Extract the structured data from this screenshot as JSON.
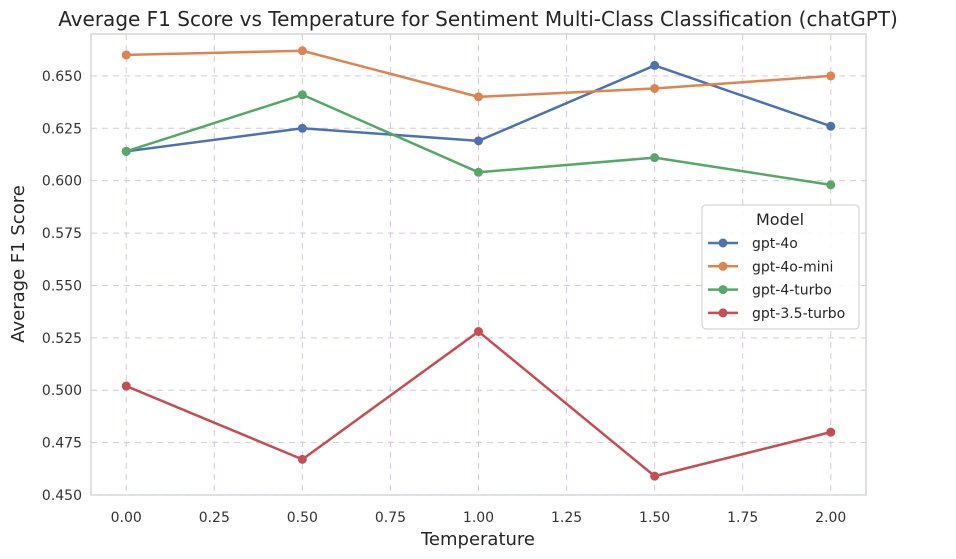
{
  "chart_data": {
    "type": "line",
    "title": "Average F1 Score vs Temperature for Sentiment Multi-Class Classification (chatGPT)",
    "xlabel": "Temperature",
    "ylabel": "Average F1 Score",
    "x": [
      0.0,
      0.5,
      1.0,
      1.5,
      2.0
    ],
    "xlim": [
      -0.1,
      2.1
    ],
    "ylim": [
      0.45,
      0.67
    ],
    "x_ticks": [
      "0.00",
      "0.25",
      "0.50",
      "0.75",
      "1.00",
      "1.25",
      "1.50",
      "1.75",
      "2.00"
    ],
    "y_ticks": [
      "0.450",
      "0.475",
      "0.500",
      "0.525",
      "0.550",
      "0.575",
      "0.600",
      "0.625",
      "0.650"
    ],
    "grid": true,
    "legend": {
      "title": "Model",
      "placement": "center-right"
    },
    "series": [
      {
        "name": "gpt-4o",
        "color": "#4c72b0",
        "values": [
          0.614,
          0.625,
          0.619,
          0.655,
          0.626
        ]
      },
      {
        "name": "gpt-4o-mini",
        "color": "#dd8452",
        "values": [
          0.66,
          0.662,
          0.64,
          0.644,
          0.65
        ]
      },
      {
        "name": "gpt-4-turbo",
        "color": "#55a868",
        "values": [
          0.614,
          0.641,
          0.604,
          0.611,
          0.598
        ]
      },
      {
        "name": "gpt-3.5-turbo",
        "color": "#c44e52",
        "values": [
          0.502,
          0.467,
          0.528,
          0.459,
          0.48
        ]
      }
    ]
  }
}
